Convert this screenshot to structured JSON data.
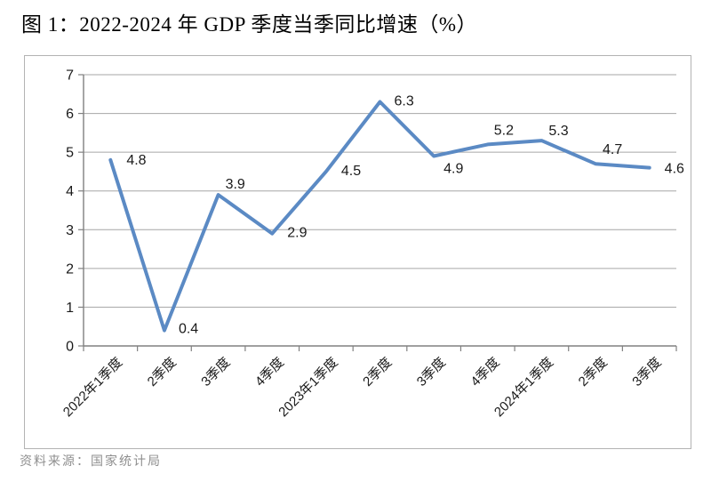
{
  "page": {
    "source_note": "资料来源：国家统计局"
  },
  "chart_data": {
    "type": "line",
    "title": "图 1：2022-2024 年 GDP 季度当季同比增速（%）",
    "categories": [
      "2022年1季度",
      "2季度",
      "3季度",
      "4季度",
      "2023年1季度",
      "2季度",
      "3季度",
      "4季度",
      "2024年1季度",
      "2季度",
      "3季度"
    ],
    "values": [
      4.8,
      0.4,
      3.9,
      2.9,
      4.5,
      6.3,
      4.9,
      5.2,
      5.3,
      4.7,
      4.6
    ],
    "xlabel": "",
    "ylabel": "",
    "ylim": [
      0,
      7
    ],
    "ytick_interval": 1,
    "grid": true,
    "legend": "none",
    "data_labels_shown": true,
    "colors": {
      "line": "#5b8ac4",
      "gridline": "#a6a6a6",
      "axis": "#808080",
      "text": "#1a1a1a",
      "source_text": "#8f8f8f",
      "frame_border": "#b3b3b3"
    }
  }
}
